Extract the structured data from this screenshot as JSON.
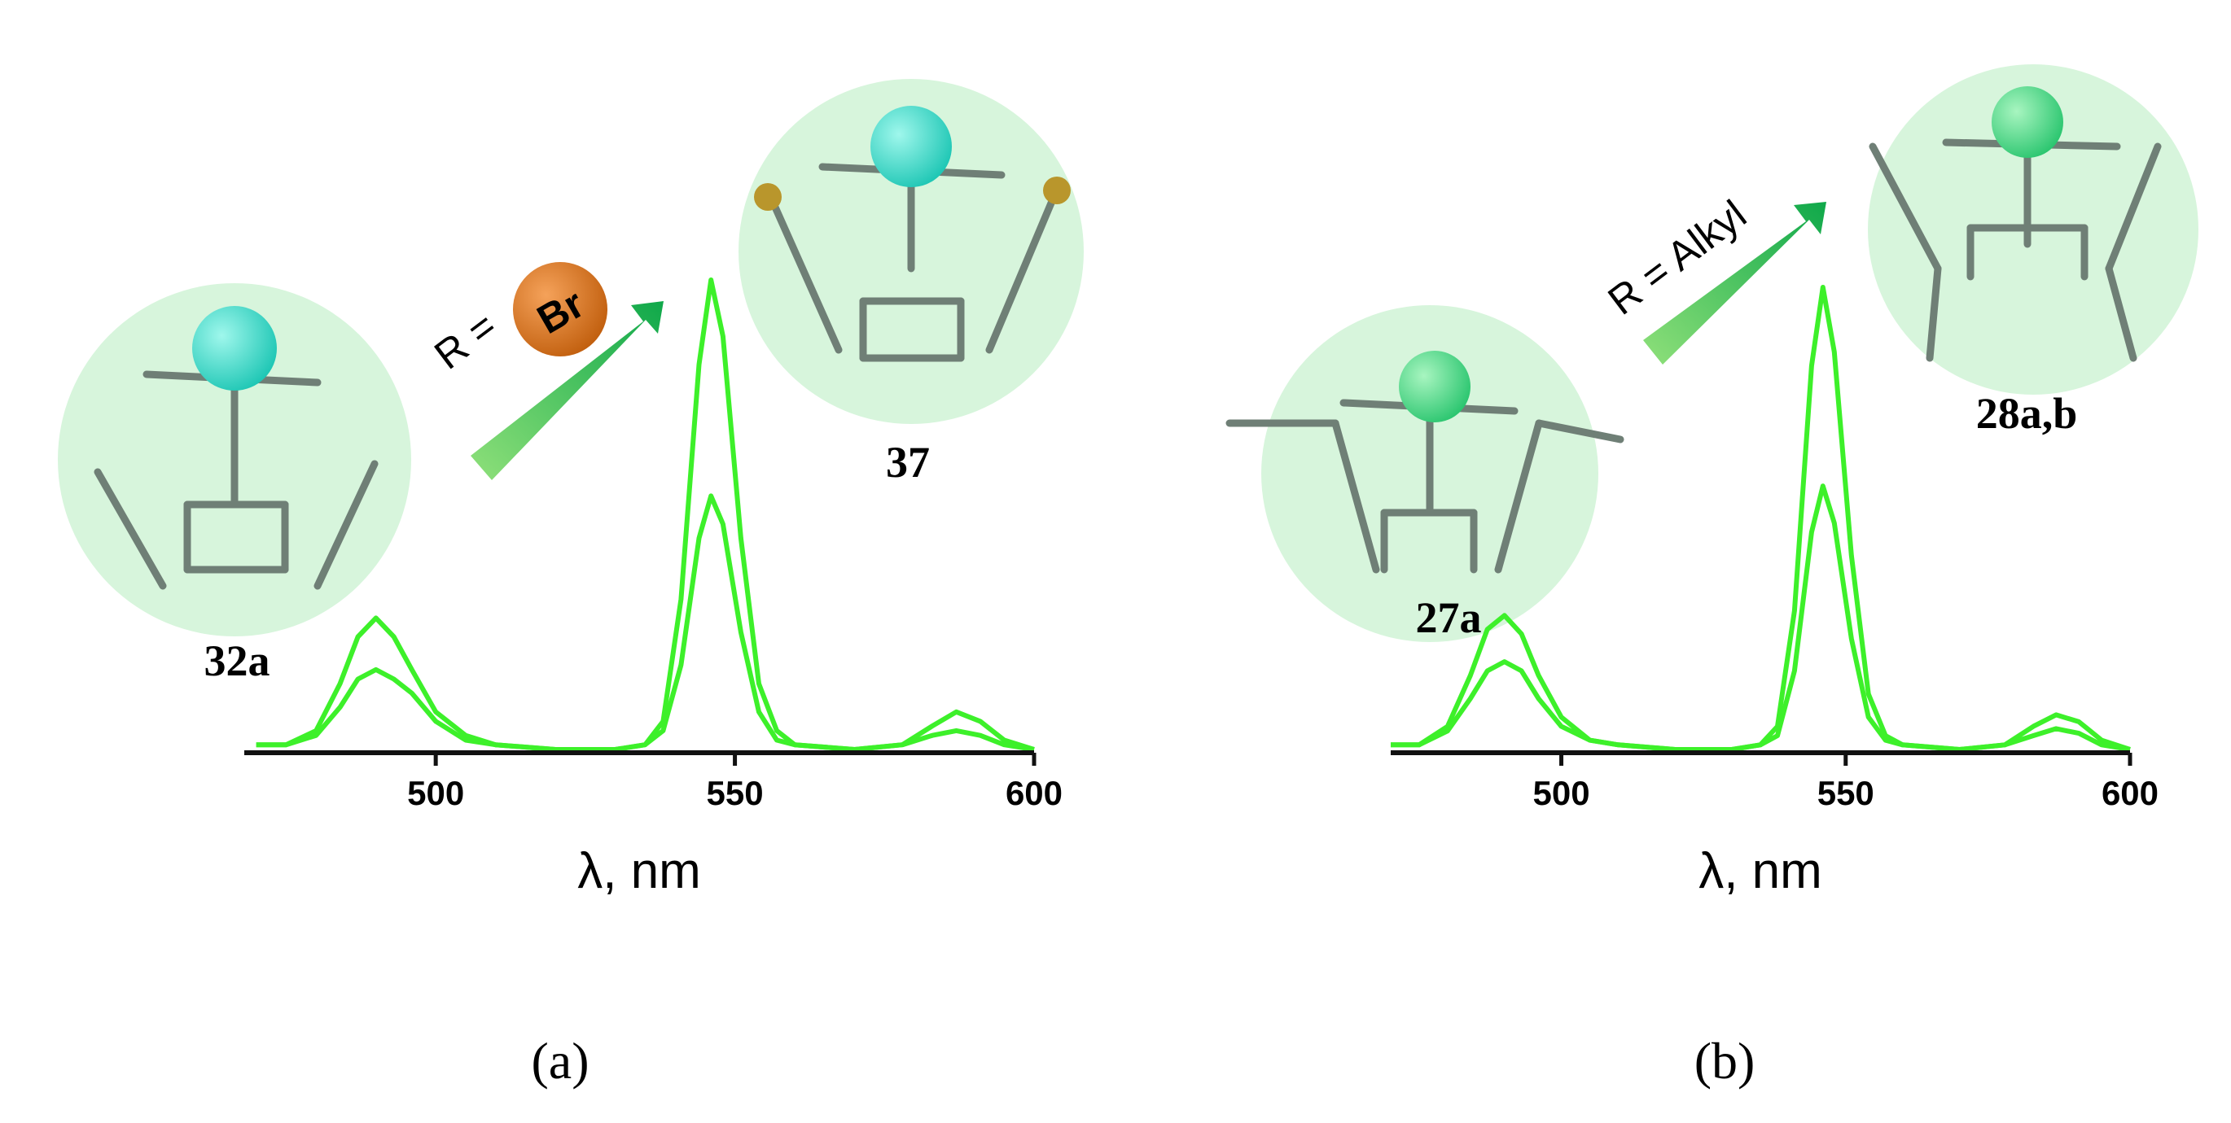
{
  "chart_data": [
    {
      "type": "line",
      "xlabel": "λ, nm",
      "panel_label": "(a)",
      "compound_labels": [
        "32a",
        "37"
      ],
      "substituent_label": "R =",
      "substituent": "Br",
      "x": [
        470,
        475,
        480,
        484,
        487,
        490,
        493,
        496,
        500,
        505,
        510,
        520,
        530,
        535,
        538,
        541,
        544,
        546,
        548,
        551,
        554,
        557,
        560,
        570,
        578,
        583,
        587,
        591,
        595,
        600
      ],
      "series": [
        {
          "color": "#3df02a",
          "values": [
            0.01,
            0.01,
            0.04,
            0.14,
            0.24,
            0.28,
            0.24,
            0.17,
            0.08,
            0.03,
            0.01,
            0,
            0,
            0.01,
            0.06,
            0.32,
            0.82,
            1.0,
            0.88,
            0.45,
            0.14,
            0.04,
            0.01,
            0,
            0.01,
            0.05,
            0.08,
            0.06,
            0.02,
            0
          ]
        },
        {
          "color": "#3df02a",
          "values": [
            0.01,
            0.01,
            0.03,
            0.09,
            0.15,
            0.17,
            0.15,
            0.12,
            0.06,
            0.02,
            0.01,
            0,
            0,
            0.01,
            0.04,
            0.18,
            0.45,
            0.54,
            0.48,
            0.25,
            0.08,
            0.02,
            0.01,
            0,
            0.01,
            0.03,
            0.04,
            0.03,
            0.01,
            0
          ]
        }
      ],
      "xlim": [
        468,
        600
      ],
      "xticks": [
        500,
        550,
        600
      ],
      "ylim": [
        0,
        1
      ]
    },
    {
      "type": "line",
      "xlabel": "λ, nm",
      "panel_label": "(b)",
      "compound_labels": [
        "27a",
        "28a,b"
      ],
      "substituent_label": "R = Alkyl",
      "x": [
        470,
        475,
        480,
        484,
        487,
        490,
        493,
        496,
        500,
        505,
        510,
        520,
        530,
        535,
        538,
        541,
        544,
        546,
        548,
        551,
        554,
        557,
        560,
        570,
        578,
        583,
        587,
        591,
        595,
        600
      ],
      "series": [
        {
          "color": "#3df02a",
          "values": [
            0.01,
            0.01,
            0.05,
            0.16,
            0.26,
            0.29,
            0.25,
            0.16,
            0.07,
            0.02,
            0.01,
            0,
            0,
            0.01,
            0.05,
            0.3,
            0.83,
            1.0,
            0.86,
            0.42,
            0.12,
            0.03,
            0.01,
            0,
            0.01,
            0.05,
            0.075,
            0.06,
            0.02,
            0
          ]
        },
        {
          "color": "#3df02a",
          "values": [
            0.01,
            0.01,
            0.04,
            0.11,
            0.17,
            0.19,
            0.17,
            0.11,
            0.05,
            0.02,
            0.01,
            0,
            0,
            0.01,
            0.03,
            0.17,
            0.47,
            0.57,
            0.49,
            0.24,
            0.07,
            0.02,
            0.01,
            0,
            0.01,
            0.03,
            0.045,
            0.035,
            0.01,
            0
          ]
        }
      ],
      "xlim": [
        470,
        600
      ],
      "xticks": [
        500,
        550,
        600
      ],
      "ylim": [
        0,
        1
      ]
    }
  ]
}
